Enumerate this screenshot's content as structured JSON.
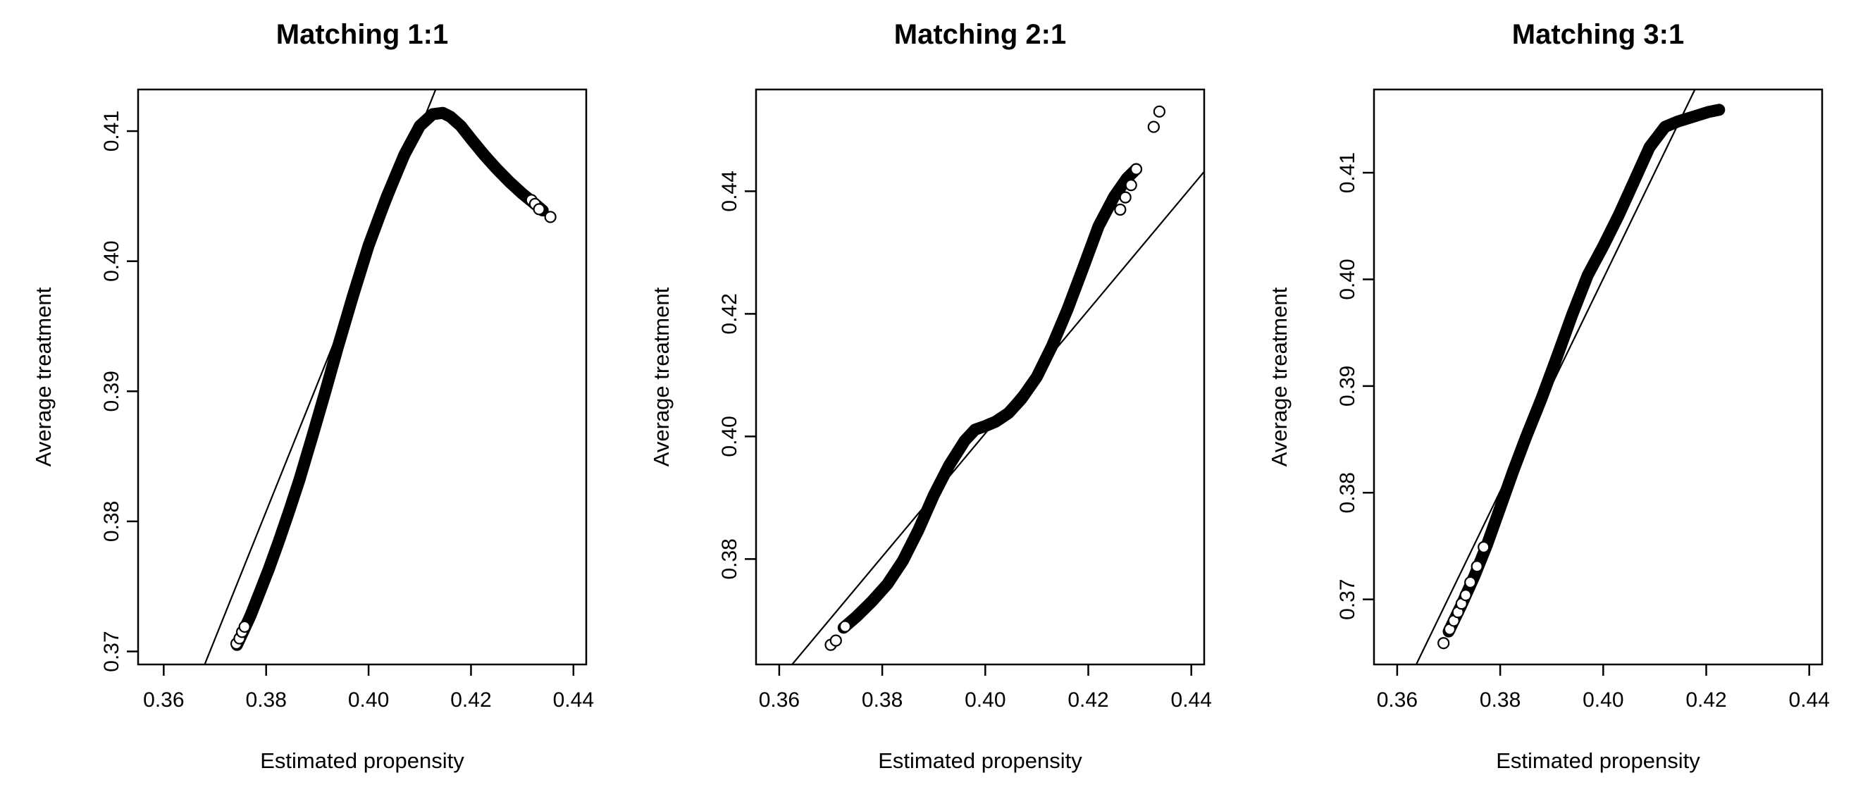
{
  "figure": {
    "background": "#ffffff",
    "ink": "#000000"
  },
  "chart_data": [
    {
      "type": "scatter",
      "title": "Matching 1:1",
      "xlabel": "Estimated propensity",
      "ylabel": "Average treatment",
      "xlim": [
        0.355,
        0.4425
      ],
      "ylim": [
        0.369,
        0.4132
      ],
      "xticks": [
        0.36,
        0.38,
        0.4,
        0.42,
        0.44
      ],
      "xtick_labels": [
        "0.36",
        "0.38",
        "0.40",
        "0.42",
        "0.44"
      ],
      "yticks": [
        0.37,
        0.38,
        0.39,
        0.4,
        0.41
      ],
      "ytick_labels": [
        "0.37",
        "0.38",
        "0.39",
        "0.40",
        "0.41"
      ],
      "grid": false,
      "legend": "none",
      "reference_line": {
        "x": [
          0.368,
          0.4131
        ],
        "y": [
          0.369,
          0.4132
        ]
      },
      "curve": {
        "x": [
          0.3743,
          0.3755,
          0.377,
          0.3785,
          0.3805,
          0.3825,
          0.3845,
          0.3865,
          0.389,
          0.3915,
          0.394,
          0.397,
          0.4,
          0.4035,
          0.407,
          0.41,
          0.4125,
          0.4145,
          0.416,
          0.418,
          0.42,
          0.4225,
          0.425,
          0.4275,
          0.43,
          0.4325,
          0.434
        ],
        "y": [
          0.3705,
          0.3715,
          0.3728,
          0.3743,
          0.3763,
          0.3785,
          0.3808,
          0.3832,
          0.3865,
          0.3899,
          0.3934,
          0.3974,
          0.4012,
          0.4049,
          0.4082,
          0.4104,
          0.4113,
          0.4114,
          0.4111,
          0.4104,
          0.4094,
          0.4082,
          0.4071,
          0.4061,
          0.4052,
          0.4044,
          0.4039
        ]
      },
      "points": {
        "x": [
          0.3742,
          0.3748,
          0.3753,
          0.3758,
          0.4318,
          0.4325,
          0.4333,
          0.4355
        ],
        "y": [
          0.3706,
          0.371,
          0.3715,
          0.3719,
          0.4047,
          0.4044,
          0.404,
          0.4034
        ]
      }
    },
    {
      "type": "scatter",
      "title": "Matching 2:1",
      "xlabel": "Estimated propensity",
      "ylabel": "Average treatment",
      "xlim": [
        0.3555,
        0.4425
      ],
      "ylim": [
        0.3628,
        0.4566
      ],
      "xticks": [
        0.36,
        0.38,
        0.4,
        0.42,
        0.44
      ],
      "xtick_labels": [
        "0.36",
        "0.38",
        "0.40",
        "0.42",
        "0.44"
      ],
      "yticks": [
        0.38,
        0.4,
        0.42,
        0.44
      ],
      "ytick_labels": [
        "0.38",
        "0.40",
        "0.42",
        "0.44"
      ],
      "grid": false,
      "legend": "none",
      "reference_line": {
        "x": [
          0.3625,
          0.4425
        ],
        "y": [
          0.3628,
          0.4432
        ]
      },
      "curve": {
        "x": [
          0.3725,
          0.375,
          0.378,
          0.381,
          0.384,
          0.387,
          0.39,
          0.393,
          0.396,
          0.398,
          0.4,
          0.402,
          0.4045,
          0.407,
          0.41,
          0.413,
          0.416,
          0.419,
          0.422,
          0.425,
          0.4275,
          0.4293
        ],
        "y": [
          0.3688,
          0.3706,
          0.3731,
          0.3759,
          0.3797,
          0.3847,
          0.3904,
          0.3953,
          0.3993,
          0.4011,
          0.4017,
          0.4024,
          0.4038,
          0.4061,
          0.4097,
          0.4148,
          0.4208,
          0.4275,
          0.4343,
          0.4391,
          0.4421,
          0.4436
        ]
      },
      "points": {
        "x": [
          0.37,
          0.371,
          0.3728,
          0.4262,
          0.4272,
          0.4283,
          0.4293,
          0.4327,
          0.4338
        ],
        "y": [
          0.366,
          0.3667,
          0.369,
          0.437,
          0.439,
          0.441,
          0.4436,
          0.4505,
          0.453
        ]
      }
    },
    {
      "type": "scatter",
      "title": "Matching 3:1",
      "xlabel": "Estimated propensity",
      "ylabel": "Average treatment",
      "xlim": [
        0.3555,
        0.4425
      ],
      "ylim": [
        0.3639,
        0.4178
      ],
      "xticks": [
        0.36,
        0.38,
        0.4,
        0.42,
        0.44
      ],
      "xtick_labels": [
        "0.36",
        "0.38",
        "0.40",
        "0.42",
        "0.44"
      ],
      "yticks": [
        0.37,
        0.38,
        0.39,
        0.4,
        0.41
      ],
      "ytick_labels": [
        "0.37",
        "0.38",
        "0.39",
        "0.40",
        "0.41"
      ],
      "grid": false,
      "legend": "none",
      "reference_line": {
        "x": [
          0.3637,
          0.4178
        ],
        "y": [
          0.3639,
          0.4178
        ]
      },
      "curve": {
        "x": [
          0.37,
          0.3725,
          0.375,
          0.3775,
          0.38,
          0.3825,
          0.385,
          0.388,
          0.391,
          0.394,
          0.397,
          0.4,
          0.403,
          0.406,
          0.409,
          0.412,
          0.4145,
          0.4165,
          0.4185,
          0.4205,
          0.4225
        ],
        "y": [
          0.367,
          0.3695,
          0.3722,
          0.3752,
          0.3786,
          0.382,
          0.3852,
          0.3888,
          0.3927,
          0.3967,
          0.4004,
          0.4031,
          0.406,
          0.4092,
          0.4124,
          0.4143,
          0.4148,
          0.4151,
          0.4154,
          0.4157,
          0.4159
        ]
      },
      "points": {
        "x": [
          0.369,
          0.3702,
          0.371,
          0.3718,
          0.3725,
          0.3733,
          0.3742,
          0.3755,
          0.3768
        ],
        "y": [
          0.3659,
          0.3672,
          0.368,
          0.3688,
          0.3696,
          0.3704,
          0.3716,
          0.3731,
          0.3749
        ]
      }
    }
  ]
}
